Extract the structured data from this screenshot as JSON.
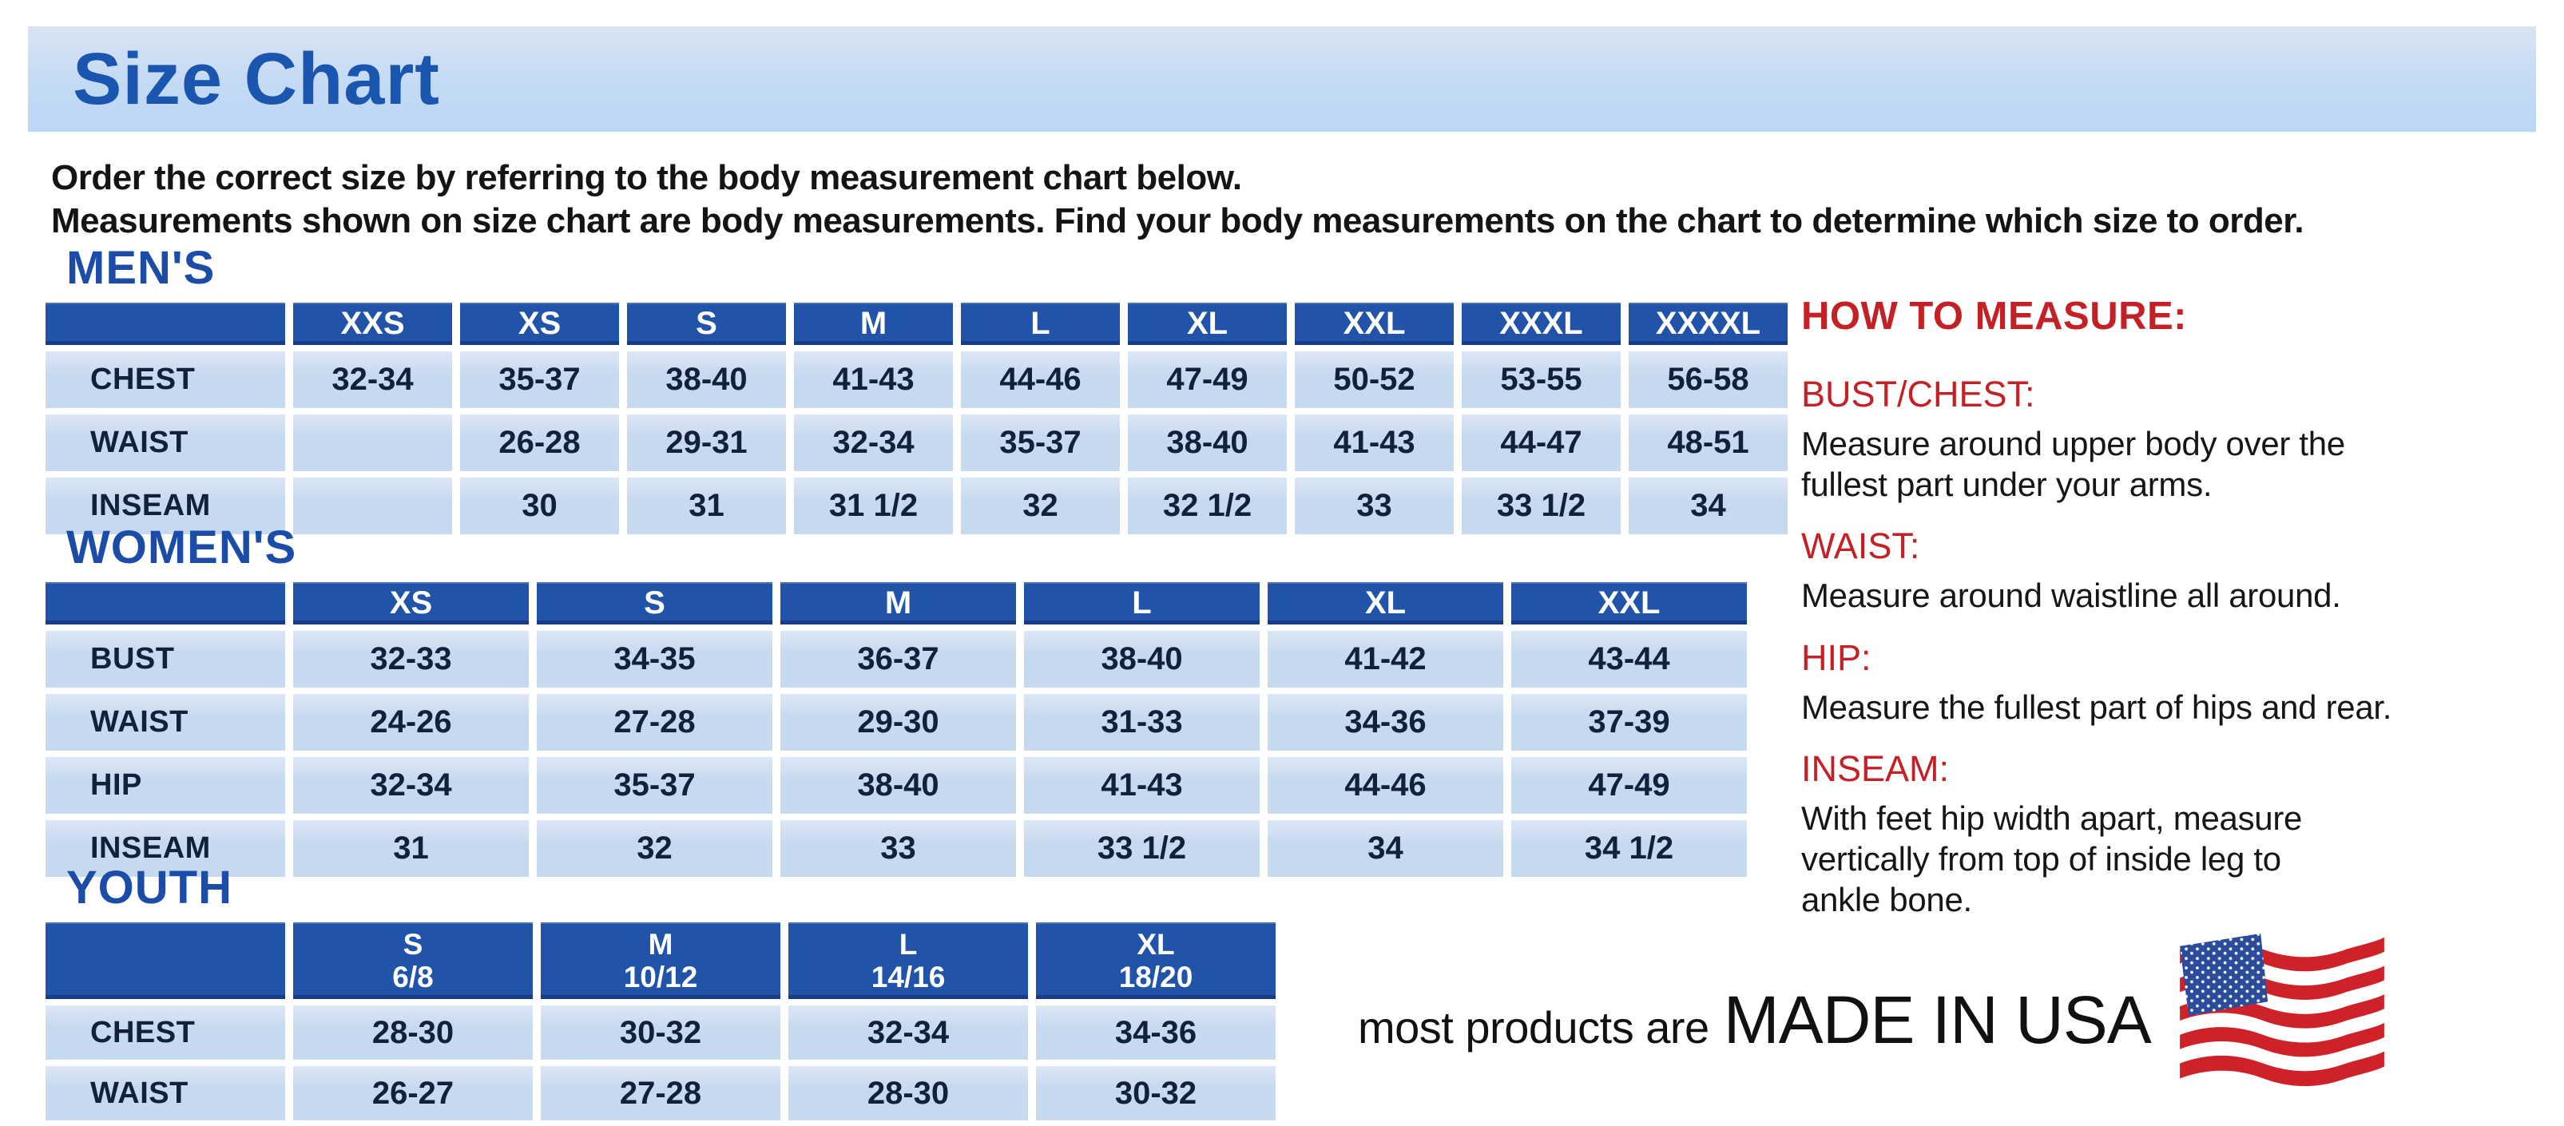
{
  "banner": {
    "title": "Size Chart"
  },
  "intro": {
    "line1": "Order the correct size by referring to the body measurement chart below.",
    "line2": "Measurements shown on size chart are body measurements.  Find your body measurements on the chart to determine which size to order."
  },
  "tables": {
    "mens": {
      "heading": "MEN'S",
      "columns": [
        "XXS",
        "XS",
        "S",
        "M",
        "L",
        "XL",
        "XXL",
        "XXXL",
        "XXXXL"
      ],
      "rows": [
        {
          "label": "CHEST",
          "values": [
            "32-34",
            "35-37",
            "38-40",
            "41-43",
            "44-46",
            "47-49",
            "50-52",
            "53-55",
            "56-58"
          ]
        },
        {
          "label": "WAIST",
          "values": [
            "",
            "26-28",
            "29-31",
            "32-34",
            "35-37",
            "38-40",
            "41-43",
            "44-47",
            "48-51"
          ]
        },
        {
          "label": "INSEAM",
          "values": [
            "",
            "30",
            "31",
            "31 1/2",
            "32",
            "32 1/2",
            "33",
            "33 1/2",
            "34"
          ]
        }
      ]
    },
    "womens": {
      "heading": "WOMEN'S",
      "columns": [
        "XS",
        "S",
        "M",
        "L",
        "XL",
        "XXL"
      ],
      "rows": [
        {
          "label": "BUST",
          "values": [
            "32-33",
            "34-35",
            "36-37",
            "38-40",
            "41-42",
            "43-44"
          ]
        },
        {
          "label": "WAIST",
          "values": [
            "24-26",
            "27-28",
            "29-30",
            "31-33",
            "34-36",
            "37-39"
          ]
        },
        {
          "label": "HIP",
          "values": [
            "32-34",
            "35-37",
            "38-40",
            "41-43",
            "44-46",
            "47-49"
          ]
        },
        {
          "label": "INSEAM",
          "values": [
            "31",
            "32",
            "33",
            "33 1/2",
            "34",
            "34 1/2"
          ]
        }
      ]
    },
    "youth": {
      "heading": "YOUTH",
      "columns": [
        {
          "size": "S",
          "range": "6/8"
        },
        {
          "size": "M",
          "range": "10/12"
        },
        {
          "size": "L",
          "range": "14/16"
        },
        {
          "size": "XL",
          "range": "18/20"
        }
      ],
      "rows": [
        {
          "label": "CHEST",
          "values": [
            "28-30",
            "30-32",
            "32-34",
            "34-36"
          ]
        },
        {
          "label": "WAIST",
          "values": [
            "26-27",
            "27-28",
            "28-30",
            "30-32"
          ]
        }
      ]
    }
  },
  "how_to_measure": {
    "heading": "HOW TO MEASURE:",
    "items": [
      {
        "label": "BUST/CHEST:",
        "text": "Measure around upper body over the\nfullest part under your arms."
      },
      {
        "label": "WAIST:",
        "text": "Measure around waistline all around."
      },
      {
        "label": "HIP:",
        "text": "Measure the fullest part of hips and rear."
      },
      {
        "label": "INSEAM:",
        "text": "With feet hip width apart, measure\nvertically from top of inside leg to\nankle bone."
      }
    ]
  },
  "footer": {
    "prefix": "most products are",
    "emphasis": "MADE IN USA"
  },
  "colors": {
    "title": "#1a55b0",
    "section": "#1b4da8",
    "hdr": "#2153a8",
    "cell": "#c7d9ef",
    "cell_hi": "#dce7f5",
    "ink": "#13203c",
    "red": "#c42127",
    "flag_red": "#cf2128",
    "flag_blue": "#2b4b9b"
  }
}
